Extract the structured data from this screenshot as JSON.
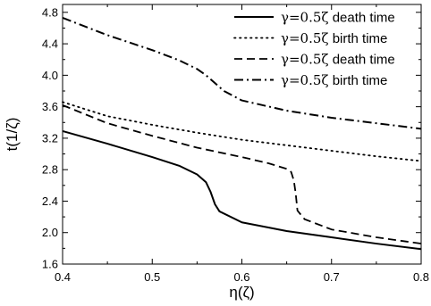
{
  "chart_data": {
    "type": "line",
    "xlabel": "η(ζ)",
    "ylabel": "t(1/ζ)",
    "xlim": [
      0.4,
      0.8
    ],
    "ylim": [
      1.6,
      4.9
    ],
    "x_ticks": [
      0.4,
      0.5,
      0.6,
      0.7,
      0.8
    ],
    "x_tick_labels": [
      "0.4",
      "0.5",
      "0.6",
      "0.7",
      "0.8"
    ],
    "y_ticks": [
      1.6,
      2.0,
      2.4,
      2.8,
      3.2,
      3.6,
      4.0,
      4.4,
      4.8
    ],
    "y_tick_labels": [
      "1.6",
      "2.0",
      "2.4",
      "2.8",
      "3.2",
      "3.6",
      "4.0",
      "4.4",
      "4.8"
    ],
    "grid": false,
    "legend_position": "top-right",
    "series": [
      {
        "name": "γ=0.5ζ death time",
        "legend_symbol": "γ=0.5ζ",
        "legend_text": "death time",
        "style": "solid",
        "x": [
          0.4,
          0.45,
          0.5,
          0.53,
          0.55,
          0.56,
          0.565,
          0.57,
          0.575,
          0.6,
          0.65,
          0.7,
          0.75,
          0.8
        ],
        "y": [
          3.29,
          3.13,
          2.96,
          2.85,
          2.74,
          2.64,
          2.52,
          2.36,
          2.27,
          2.13,
          2.02,
          1.94,
          1.86,
          1.79
        ]
      },
      {
        "name": "γ=0.5ζ birth time",
        "legend_symbol": "γ=0.5ζ",
        "legend_text": "birth time",
        "style": "dotted",
        "x": [
          0.4,
          0.45,
          0.5,
          0.55,
          0.6,
          0.65,
          0.7,
          0.75,
          0.8
        ],
        "y": [
          3.66,
          3.48,
          3.37,
          3.27,
          3.18,
          3.11,
          3.04,
          2.97,
          2.91
        ]
      },
      {
        "name": "γ=0.5ζ death time",
        "legend_symbol": "γ=0.5ζ",
        "legend_text": "death time",
        "style": "dashed",
        "x": [
          0.4,
          0.45,
          0.5,
          0.55,
          0.6,
          0.63,
          0.65,
          0.655,
          0.658,
          0.66,
          0.662,
          0.67,
          0.7,
          0.75,
          0.8
        ],
        "y": [
          3.62,
          3.39,
          3.23,
          3.08,
          2.96,
          2.88,
          2.81,
          2.77,
          2.66,
          2.5,
          2.28,
          2.17,
          2.04,
          1.94,
          1.86
        ]
      },
      {
        "name": "γ=0.5ζ birth time",
        "legend_symbol": "γ=0.5ζ",
        "legend_text": "birth time",
        "style": "dashdot",
        "x": [
          0.4,
          0.45,
          0.5,
          0.53,
          0.55,
          0.56,
          0.57,
          0.58,
          0.6,
          0.65,
          0.7,
          0.75,
          0.8
        ],
        "y": [
          4.73,
          4.51,
          4.32,
          4.19,
          4.08,
          4.0,
          3.9,
          3.8,
          3.68,
          3.55,
          3.46,
          3.39,
          3.32
        ]
      }
    ]
  }
}
